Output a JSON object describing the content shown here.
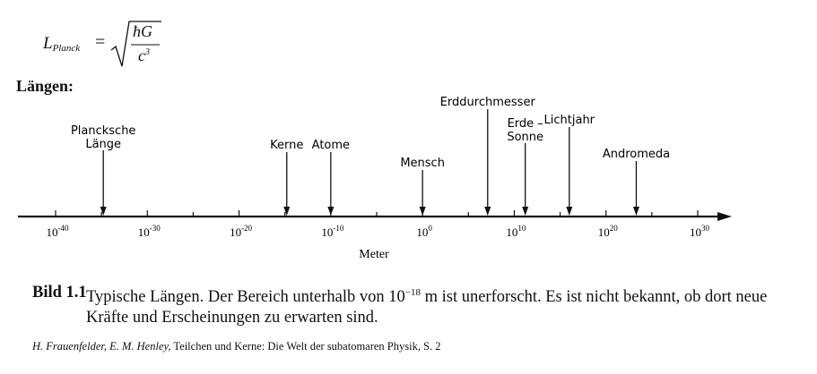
{
  "formula": {
    "lhs_symbol": "L",
    "lhs_subscript": "Planck",
    "equals": "=",
    "numerator": "ħG",
    "denominator_base": "c",
    "denominator_exp": "3"
  },
  "heading": "Längen:",
  "scale": {
    "axis_label": "Meter",
    "ticks": [
      {
        "base": "10",
        "exp": "-40",
        "value": -40
      },
      {
        "base": "10",
        "exp": "-30",
        "value": -30
      },
      {
        "base": "10",
        "exp": "-20",
        "value": -20
      },
      {
        "base": "10",
        "exp": "-10",
        "value": -10
      },
      {
        "base": "10",
        "exp": "0",
        "value": 0
      },
      {
        "base": "10",
        "exp": "10",
        "value": 10
      },
      {
        "base": "10",
        "exp": "20",
        "value": 20
      },
      {
        "base": "10",
        "exp": "30",
        "value": 30
      }
    ],
    "markers": [
      {
        "lines": [
          "Plancksche",
          "Länge"
        ],
        "value": -34.8
      },
      {
        "lines": [
          "Kerne"
        ],
        "value": -14.8
      },
      {
        "lines": [
          "Atome"
        ],
        "value": -10
      },
      {
        "lines": [
          "Mensch"
        ],
        "value": 0
      },
      {
        "lines": [
          "Erddurchmesser"
        ],
        "value": 7.1
      },
      {
        "lines": [
          "Erde –",
          "Sonne"
        ],
        "value": 11.2
      },
      {
        "lines": [
          "Lichtjahr"
        ],
        "value": 16.0
      },
      {
        "lines": [
          "Andromeda"
        ],
        "value": 23.3
      }
    ]
  },
  "caption": {
    "label": "Bild 1.1",
    "text_before": "Typische Längen. Der Bereich unterhalb von 10",
    "exponent": "−18",
    "text_after": " m ist unerforscht. Es ist nicht bekannt, ob dort neue Kräfte und Erscheinungen zu erwarten sind."
  },
  "source": {
    "authors": "H. Frauenfelder, E. M. Henley,",
    "title": " Teilchen und Kerne: Die Welt der subatomaren Physik, S. 2"
  }
}
